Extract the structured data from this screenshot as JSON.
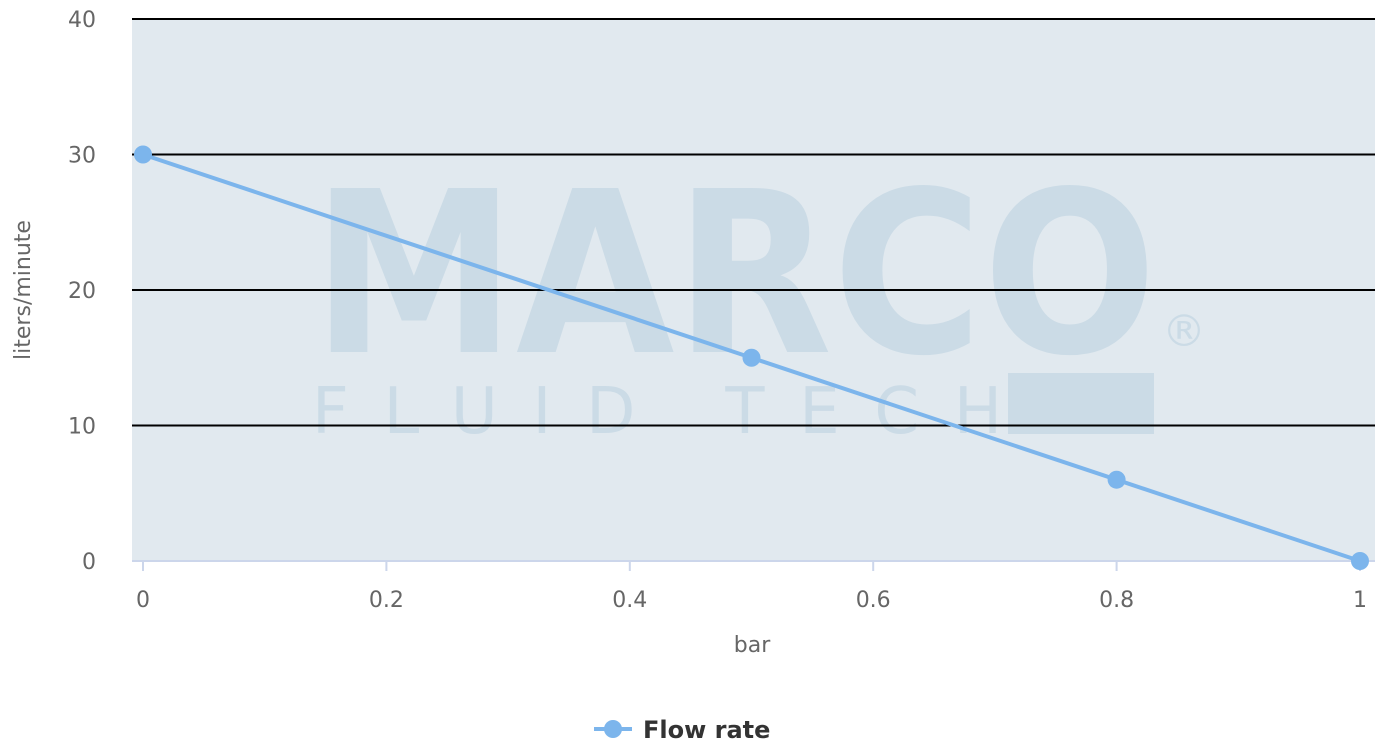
{
  "chart_data": {
    "type": "line",
    "x": [
      0,
      0.5,
      0.8,
      1
    ],
    "series": [
      {
        "name": "Flow rate",
        "values": [
          30,
          15,
          6,
          0
        ],
        "color": "#7cb5ec"
      }
    ],
    "xlabel": "bar",
    "ylabel": "liters/minute",
    "xlim": [
      0,
      1
    ],
    "ylim": [
      0,
      40
    ],
    "xticks": [
      0,
      0.2,
      0.4,
      0.6,
      0.8,
      1
    ],
    "xtick_labels": [
      "0",
      "0.2",
      "0.4",
      "0.6",
      "0.8",
      "1"
    ],
    "yticks": [
      0,
      10,
      20,
      30,
      40
    ],
    "ytick_labels": [
      "0",
      "10",
      "20",
      "30",
      "40"
    ],
    "grid": true,
    "legend_position": "bottom-center",
    "plot_background": "#e1e9ef",
    "gridline_color": "#000000",
    "watermark": {
      "brand": "MARCO",
      "tagline": "FLUID TECH",
      "registered": "®"
    }
  }
}
